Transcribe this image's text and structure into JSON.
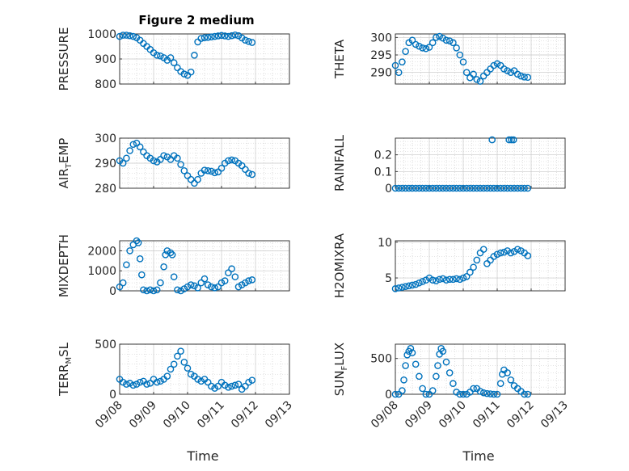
{
  "figure": {
    "title": "Figure 2 medium"
  },
  "colors": {
    "marker": "#0072BD",
    "axes": "#262626",
    "grid": "#c8c8c8"
  },
  "chart_data": [
    {
      "type": "scatter",
      "title": "Figure 2 medium",
      "ylabel": "PRESSURE",
      "ylabel_parts": [
        {
          "t": "PRESSURE",
          "sub": false
        }
      ],
      "ylim": [
        800,
        1000
      ],
      "yticks": [
        800,
        900,
        1000
      ],
      "xlim": [
        "09/08",
        "09/13"
      ],
      "xticks": [
        "09/08",
        "09/09",
        "09/10",
        "09/11",
        "09/12",
        "09/13"
      ],
      "show_xticklabels": false,
      "xlabel": "",
      "grid": true,
      "x": [
        0.0,
        0.1,
        0.2,
        0.3,
        0.4,
        0.5,
        0.6,
        0.7,
        0.8,
        0.9,
        1.0,
        1.1,
        1.2,
        1.3,
        1.4,
        1.5,
        1.6,
        1.7,
        1.8,
        1.9,
        2.0,
        2.1,
        2.2,
        2.3,
        2.4,
        2.5,
        2.6,
        2.7,
        2.8,
        2.9,
        3.0,
        3.1,
        3.2,
        3.3,
        3.4,
        3.5,
        3.6,
        3.7,
        3.8,
        3.9
      ],
      "y": [
        990,
        995,
        995,
        993,
        990,
        985,
        975,
        962,
        950,
        938,
        925,
        915,
        912,
        905,
        895,
        905,
        885,
        865,
        850,
        840,
        835,
        848,
        915,
        968,
        982,
        985,
        986,
        988,
        990,
        992,
        994,
        992,
        990,
        993,
        996,
        993,
        984,
        975,
        970,
        966
      ]
    },
    {
      "type": "scatter",
      "ylabel": "THETA",
      "ylabel_parts": [
        {
          "t": "THETA",
          "sub": false
        }
      ],
      "ylim": [
        286.7,
        301.0
      ],
      "yticks": [
        290,
        295,
        300
      ],
      "xlim": [
        "09/08",
        "09/13"
      ],
      "xticks": [
        "09/08",
        "09/09",
        "09/10",
        "09/11",
        "09/12",
        "09/13"
      ],
      "show_xticklabels": false,
      "xlabel": "",
      "grid": true,
      "x": [
        0.0,
        0.1,
        0.2,
        0.3,
        0.4,
        0.5,
        0.6,
        0.7,
        0.8,
        0.9,
        1.0,
        1.1,
        1.2,
        1.3,
        1.4,
        1.5,
        1.6,
        1.7,
        1.8,
        1.9,
        2.0,
        2.1,
        2.2,
        2.3,
        2.4,
        2.5,
        2.6,
        2.7,
        2.8,
        2.9,
        3.0,
        3.1,
        3.2,
        3.3,
        3.4,
        3.5,
        3.6,
        3.7,
        3.8,
        3.9
      ],
      "y": [
        292,
        290,
        293,
        296,
        298.5,
        299.2,
        298,
        297.5,
        297,
        296.8,
        297.2,
        298.5,
        300,
        300.3,
        299.8,
        299.2,
        299,
        298.5,
        297,
        295,
        293,
        290,
        288.5,
        289.5,
        288,
        287.5,
        289,
        290,
        291,
        292,
        292.5,
        292,
        291,
        290.5,
        290,
        290.5,
        289.5,
        289,
        288.7,
        288.6
      ]
    },
    {
      "type": "scatter",
      "ylabel": "AIR_TEMP",
      "ylabel_parts": [
        {
          "t": "AIR",
          "sub": false
        },
        {
          "t": "T",
          "sub": true
        },
        {
          "t": "EMP",
          "sub": false
        }
      ],
      "ylim": [
        280,
        300
      ],
      "yticks": [
        280,
        290,
        300
      ],
      "xlim": [
        "09/08",
        "09/13"
      ],
      "xticks": [
        "09/08",
        "09/09",
        "09/10",
        "09/11",
        "09/12",
        "09/13"
      ],
      "show_xticklabels": false,
      "xlabel": "",
      "grid": true,
      "x": [
        0.0,
        0.1,
        0.2,
        0.3,
        0.4,
        0.5,
        0.6,
        0.7,
        0.8,
        0.9,
        1.0,
        1.1,
        1.2,
        1.3,
        1.4,
        1.5,
        1.6,
        1.7,
        1.8,
        1.9,
        2.0,
        2.1,
        2.2,
        2.3,
        2.4,
        2.5,
        2.6,
        2.7,
        2.8,
        2.9,
        3.0,
        3.1,
        3.2,
        3.3,
        3.4,
        3.5,
        3.6,
        3.7,
        3.8,
        3.9
      ],
      "y": [
        291,
        290,
        292,
        295,
        297.5,
        298,
        296.5,
        294.5,
        293,
        292,
        291,
        290.5,
        291.5,
        293,
        292.5,
        291.5,
        293,
        292,
        289.5,
        287,
        285,
        283.5,
        282,
        283.5,
        286,
        287.2,
        287,
        286.8,
        286.2,
        286.5,
        288,
        290,
        291,
        291.3,
        291,
        290,
        289,
        287.5,
        286,
        285.5
      ]
    },
    {
      "type": "scatter",
      "ylabel": "RAINFALL",
      "ylabel_parts": [
        {
          "t": "RAINFALL",
          "sub": false
        }
      ],
      "ylim": [
        0,
        0.3
      ],
      "yticks": [
        0,
        0.1,
        0.2
      ],
      "xlim": [
        "09/08",
        "09/13"
      ],
      "xticks": [
        "09/08",
        "09/09",
        "09/10",
        "09/11",
        "09/12",
        "09/13"
      ],
      "show_xticklabels": false,
      "xlabel": "",
      "grid": true,
      "x": [
        0.0,
        0.1,
        0.2,
        0.3,
        0.4,
        0.5,
        0.6,
        0.7,
        0.8,
        0.9,
        1.0,
        1.1,
        1.2,
        1.3,
        1.4,
        1.5,
        1.6,
        1.7,
        1.8,
        1.9,
        2.0,
        2.1,
        2.2,
        2.3,
        2.4,
        2.5,
        2.6,
        2.7,
        2.8,
        2.9,
        3.0,
        3.1,
        3.2,
        3.3,
        3.4,
        3.5,
        3.6,
        3.7,
        3.8,
        3.9,
        2.85,
        3.35,
        3.42,
        3.48
      ],
      "y": [
        0,
        0,
        0,
        0,
        0,
        0,
        0,
        0,
        0,
        0,
        0,
        0,
        0,
        0,
        0,
        0,
        0,
        0,
        0,
        0,
        0,
        0,
        0,
        0,
        0,
        0,
        0,
        0,
        0,
        0,
        0,
        0,
        0,
        0,
        0,
        0,
        0,
        0,
        0,
        0,
        0.29,
        0.29,
        0.29,
        0.29
      ]
    },
    {
      "type": "scatter",
      "ylabel": "MIXDEPTH",
      "ylabel_parts": [
        {
          "t": "MIXDEPTH",
          "sub": false
        }
      ],
      "ylim": [
        0,
        2500
      ],
      "yticks": [
        0,
        1000,
        2000
      ],
      "xlim": [
        "09/08",
        "09/13"
      ],
      "xticks": [
        "09/08",
        "09/09",
        "09/10",
        "09/11",
        "09/12",
        "09/13"
      ],
      "show_xticklabels": false,
      "xlabel": "",
      "grid": true,
      "x": [
        0.0,
        0.1,
        0.2,
        0.3,
        0.4,
        0.5,
        0.55,
        0.6,
        0.65,
        0.7,
        0.8,
        0.9,
        1.0,
        1.1,
        1.2,
        1.3,
        1.35,
        1.4,
        1.5,
        1.55,
        1.6,
        1.7,
        1.8,
        1.9,
        2.0,
        2.1,
        2.2,
        2.3,
        2.4,
        2.5,
        2.6,
        2.7,
        2.8,
        2.9,
        3.0,
        3.1,
        3.2,
        3.3,
        3.4,
        3.5,
        3.6,
        3.7,
        3.8,
        3.9
      ],
      "y": [
        200,
        400,
        1300,
        2000,
        2300,
        2500,
        2400,
        1600,
        800,
        50,
        0,
        50,
        0,
        50,
        400,
        1200,
        1800,
        2000,
        1900,
        1800,
        700,
        50,
        0,
        100,
        200,
        300,
        250,
        150,
        400,
        600,
        300,
        200,
        150,
        200,
        400,
        500,
        900,
        1100,
        700,
        200,
        300,
        400,
        500,
        550
      ]
    },
    {
      "type": "scatter",
      "ylabel": "H2OMIXRA",
      "ylabel_parts": [
        {
          "t": "H2OMIXRA",
          "sub": false
        }
      ],
      "ylim": [
        3.2,
        10.2
      ],
      "yticks": [
        5,
        10
      ],
      "xlim": [
        "09/08",
        "09/13"
      ],
      "xticks": [
        "09/08",
        "09/09",
        "09/10",
        "09/11",
        "09/12",
        "09/13"
      ],
      "show_xticklabels": false,
      "xlabel": "",
      "grid": true,
      "x": [
        0.0,
        0.1,
        0.2,
        0.3,
        0.4,
        0.5,
        0.6,
        0.7,
        0.8,
        0.9,
        1.0,
        1.1,
        1.2,
        1.3,
        1.4,
        1.5,
        1.6,
        1.7,
        1.8,
        1.9,
        2.0,
        2.1,
        2.2,
        2.3,
        2.4,
        2.5,
        2.6,
        2.7,
        2.8,
        2.9,
        3.0,
        3.1,
        3.2,
        3.3,
        3.4,
        3.5,
        3.6,
        3.7,
        3.8,
        3.9
      ],
      "y": [
        3.5,
        3.6,
        3.7,
        3.8,
        3.9,
        4.0,
        4.1,
        4.3,
        4.5,
        4.7,
        5.0,
        4.7,
        4.6,
        4.8,
        4.9,
        4.7,
        4.8,
        4.8,
        4.9,
        4.8,
        5.0,
        5.2,
        5.8,
        6.5,
        7.5,
        8.5,
        9.0,
        7.0,
        7.5,
        8.0,
        8.3,
        8.5,
        8.6,
        8.8,
        8.5,
        8.7,
        9.0,
        8.8,
        8.5,
        8.1
      ]
    },
    {
      "type": "scatter",
      "ylabel": "TERR_MSL",
      "ylabel_parts": [
        {
          "t": "TERR",
          "sub": false
        },
        {
          "t": "M",
          "sub": true
        },
        {
          "t": "SL",
          "sub": false
        }
      ],
      "ylim": [
        0,
        500
      ],
      "yticks": [
        0,
        500
      ],
      "xlim": [
        "09/08",
        "09/13"
      ],
      "xticks": [
        "09/08",
        "09/09",
        "09/10",
        "09/11",
        "09/12",
        "09/13"
      ],
      "show_xticklabels": true,
      "xlabel": "Time",
      "grid": true,
      "x": [
        0.0,
        0.1,
        0.2,
        0.3,
        0.4,
        0.5,
        0.6,
        0.7,
        0.8,
        0.9,
        1.0,
        1.1,
        1.2,
        1.3,
        1.4,
        1.5,
        1.6,
        1.7,
        1.8,
        1.9,
        2.0,
        2.1,
        2.2,
        2.3,
        2.4,
        2.5,
        2.6,
        2.7,
        2.8,
        2.9,
        3.0,
        3.1,
        3.2,
        3.3,
        3.4,
        3.5,
        3.6,
        3.7,
        3.8,
        3.9
      ],
      "y": [
        150,
        120,
        100,
        110,
        90,
        100,
        120,
        130,
        100,
        110,
        150,
        120,
        130,
        150,
        180,
        250,
        300,
        380,
        430,
        320,
        260,
        200,
        180,
        150,
        130,
        150,
        120,
        80,
        60,
        80,
        120,
        90,
        70,
        80,
        90,
        100,
        50,
        80,
        120,
        140
      ]
    },
    {
      "type": "scatter",
      "ylabel": "SUN_FLUX",
      "ylabel_parts": [
        {
          "t": "SUN",
          "sub": false
        },
        {
          "t": "F",
          "sub": true
        },
        {
          "t": "LUX",
          "sub": false
        }
      ],
      "ylim": [
        0,
        700
      ],
      "yticks": [
        0,
        500
      ],
      "xlim": [
        "09/08",
        "09/13"
      ],
      "xticks": [
        "09/08",
        "09/09",
        "09/10",
        "09/11",
        "09/12",
        "09/13"
      ],
      "show_xticklabels": true,
      "xlabel": "Time",
      "grid": true,
      "x": [
        0.0,
        0.1,
        0.2,
        0.25,
        0.3,
        0.35,
        0.4,
        0.45,
        0.5,
        0.6,
        0.7,
        0.8,
        0.9,
        1.0,
        1.1,
        1.2,
        1.25,
        1.3,
        1.35,
        1.4,
        1.5,
        1.6,
        1.7,
        1.8,
        1.9,
        2.0,
        2.1,
        2.2,
        2.3,
        2.4,
        2.5,
        2.6,
        2.7,
        2.8,
        2.9,
        3.0,
        3.1,
        3.15,
        3.2,
        3.3,
        3.4,
        3.5,
        3.6,
        3.7,
        3.8,
        3.9
      ],
      "y": [
        0,
        0,
        50,
        200,
        400,
        550,
        600,
        640,
        580,
        420,
        250,
        80,
        0,
        0,
        50,
        250,
        400,
        560,
        640,
        600,
        450,
        300,
        150,
        30,
        0,
        0,
        0,
        30,
        80,
        80,
        40,
        20,
        10,
        5,
        0,
        0,
        150,
        280,
        340,
        300,
        200,
        120,
        80,
        40,
        0,
        0
      ]
    }
  ]
}
